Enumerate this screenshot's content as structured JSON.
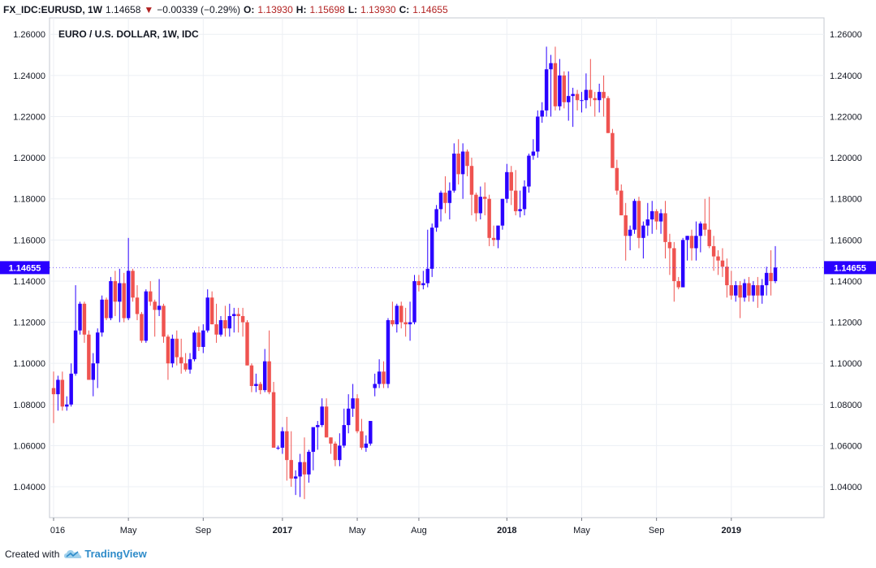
{
  "header": {
    "symbol": "FX_IDC:EURUSD, 1W",
    "last": "1.14658",
    "change": "−0.00339 (−0.29%)",
    "o_label": "O:",
    "o": "1.13930",
    "h_label": "H:",
    "h": "1.15698",
    "l_label": "L:",
    "l": "1.13930",
    "c_label": "C:",
    "c": "1.14655"
  },
  "footer": {
    "created_with": "Created with",
    "brand": "TradingView"
  },
  "colors": {
    "up": "#2a00ff",
    "down": "#ef5350",
    "grid": "#eceff4",
    "price_tag": "#2a00ff"
  },
  "chart_data": {
    "type": "candlestick",
    "title": "EURO / U.S. DOLLAR, 1W, IDC",
    "ylim": [
      1.025,
      1.268
    ],
    "y_ticks": [
      "1.04000",
      "1.06000",
      "1.08000",
      "1.10000",
      "1.12000",
      "1.14000",
      "1.16000",
      "1.18000",
      "1.20000",
      "1.22000",
      "1.24000",
      "1.26000"
    ],
    "x_ticks": [
      "016",
      "May",
      "Sep",
      "2017",
      "May",
      "Aug",
      "2018",
      "May",
      "Sep",
      "2019"
    ],
    "x_ticks_bold": [
      false,
      false,
      false,
      true,
      false,
      false,
      true,
      false,
      false,
      true
    ],
    "last_price": "1.14655",
    "grid": true,
    "candles": [
      {
        "o": 1.088,
        "h": 1.096,
        "l": 1.071,
        "c": 1.085
      },
      {
        "o": 1.085,
        "h": 1.094,
        "l": 1.077,
        "c": 1.092
      },
      {
        "o": 1.092,
        "h": 1.096,
        "l": 1.077,
        "c": 1.079
      },
      {
        "o": 1.079,
        "h": 1.084,
        "l": 1.077,
        "c": 1.08
      },
      {
        "o": 1.08,
        "h": 1.1,
        "l": 1.079,
        "c": 1.095
      },
      {
        "o": 1.095,
        "h": 1.138,
        "l": 1.094,
        "c": 1.116
      },
      {
        "o": 1.116,
        "h": 1.13,
        "l": 1.114,
        "c": 1.129
      },
      {
        "o": 1.129,
        "h": 1.13,
        "l": 1.11,
        "c": 1.114
      },
      {
        "o": 1.114,
        "h": 1.116,
        "l": 1.092,
        "c": 1.092
      },
      {
        "o": 1.092,
        "h": 1.105,
        "l": 1.084,
        "c": 1.1
      },
      {
        "o": 1.1,
        "h": 1.117,
        "l": 1.088,
        "c": 1.115
      },
      {
        "o": 1.115,
        "h": 1.133,
        "l": 1.113,
        "c": 1.131
      },
      {
        "o": 1.131,
        "h": 1.132,
        "l": 1.121,
        "c": 1.122
      },
      {
        "o": 1.122,
        "h": 1.142,
        "l": 1.121,
        "c": 1.14
      },
      {
        "o": 1.14,
        "h": 1.145,
        "l": 1.123,
        "c": 1.13
      },
      {
        "o": 1.13,
        "h": 1.146,
        "l": 1.12,
        "c": 1.139
      },
      {
        "o": 1.139,
        "h": 1.144,
        "l": 1.12,
        "c": 1.122
      },
      {
        "o": 1.122,
        "h": 1.161,
        "l": 1.121,
        "c": 1.145
      },
      {
        "o": 1.145,
        "h": 1.146,
        "l": 1.13,
        "c": 1.132
      },
      {
        "o": 1.132,
        "h": 1.138,
        "l": 1.121,
        "c": 1.124
      },
      {
        "o": 1.124,
        "h": 1.125,
        "l": 1.11,
        "c": 1.111
      },
      {
        "o": 1.111,
        "h": 1.136,
        "l": 1.11,
        "c": 1.135
      },
      {
        "o": 1.135,
        "h": 1.14,
        "l": 1.128,
        "c": 1.13
      },
      {
        "o": 1.13,
        "h": 1.131,
        "l": 1.113,
        "c": 1.126
      },
      {
        "o": 1.126,
        "h": 1.141,
        "l": 1.123,
        "c": 1.128
      },
      {
        "o": 1.128,
        "h": 1.129,
        "l": 1.11,
        "c": 1.113
      },
      {
        "o": 1.113,
        "h": 1.114,
        "l": 1.092,
        "c": 1.1
      },
      {
        "o": 1.1,
        "h": 1.114,
        "l": 1.098,
        "c": 1.112
      },
      {
        "o": 1.112,
        "h": 1.116,
        "l": 1.099,
        "c": 1.103
      },
      {
        "o": 1.103,
        "h": 1.112,
        "l": 1.095,
        "c": 1.1
      },
      {
        "o": 1.1,
        "h": 1.105,
        "l": 1.096,
        "c": 1.097
      },
      {
        "o": 1.097,
        "h": 1.105,
        "l": 1.095,
        "c": 1.102
      },
      {
        "o": 1.102,
        "h": 1.116,
        "l": 1.101,
        "c": 1.115
      },
      {
        "o": 1.115,
        "h": 1.118,
        "l": 1.106,
        "c": 1.108
      },
      {
        "o": 1.108,
        "h": 1.119,
        "l": 1.105,
        "c": 1.116
      },
      {
        "o": 1.116,
        "h": 1.136,
        "l": 1.115,
        "c": 1.132
      },
      {
        "o": 1.132,
        "h": 1.135,
        "l": 1.119,
        "c": 1.119
      },
      {
        "o": 1.119,
        "h": 1.129,
        "l": 1.11,
        "c": 1.114
      },
      {
        "o": 1.114,
        "h": 1.123,
        "l": 1.113,
        "c": 1.121
      },
      {
        "o": 1.121,
        "h": 1.128,
        "l": 1.113,
        "c": 1.117
      },
      {
        "o": 1.117,
        "h": 1.129,
        "l": 1.113,
        "c": 1.123
      },
      {
        "o": 1.123,
        "h": 1.127,
        "l": 1.115,
        "c": 1.124
      },
      {
        "o": 1.124,
        "h": 1.127,
        "l": 1.115,
        "c": 1.123
      },
      {
        "o": 1.123,
        "h": 1.127,
        "l": 1.113,
        "c": 1.12
      },
      {
        "o": 1.12,
        "h": 1.121,
        "l": 1.099,
        "c": 1.099
      },
      {
        "o": 1.099,
        "h": 1.1,
        "l": 1.086,
        "c": 1.089
      },
      {
        "o": 1.089,
        "h": 1.095,
        "l": 1.086,
        "c": 1.09
      },
      {
        "o": 1.09,
        "h": 1.091,
        "l": 1.085,
        "c": 1.087
      },
      {
        "o": 1.087,
        "h": 1.107,
        "l": 1.086,
        "c": 1.101
      },
      {
        "o": 1.101,
        "h": 1.116,
        "l": 1.085,
        "c": 1.086
      },
      {
        "o": 1.086,
        "h": 1.091,
        "l": 1.059,
        "c": 1.059
      },
      {
        "o": 1.059,
        "h": 1.06,
        "l": 1.058,
        "c": 1.059
      },
      {
        "o": 1.059,
        "h": 1.069,
        "l": 1.056,
        "c": 1.067
      },
      {
        "o": 1.067,
        "h": 1.074,
        "l": 1.043,
        "c": 1.053
      },
      {
        "o": 1.053,
        "h": 1.067,
        "l": 1.04,
        "c": 1.044
      },
      {
        "o": 1.044,
        "h": 1.048,
        "l": 1.036,
        "c": 1.045
      },
      {
        "o": 1.045,
        "h": 1.056,
        "l": 1.035,
        "c": 1.052
      },
      {
        "o": 1.052,
        "h": 1.064,
        "l": 1.034,
        "c": 1.046
      },
      {
        "o": 1.046,
        "h": 1.058,
        "l": 1.042,
        "c": 1.057
      },
      {
        "o": 1.057,
        "h": 1.068,
        "l": 1.048,
        "c": 1.069
      },
      {
        "o": 1.069,
        "h": 1.072,
        "l": 1.058,
        "c": 1.07
      },
      {
        "o": 1.07,
        "h": 1.083,
        "l": 1.069,
        "c": 1.079
      },
      {
        "o": 1.079,
        "h": 1.083,
        "l": 1.064,
        "c": 1.064
      },
      {
        "o": 1.064,
        "h": 1.064,
        "l": 1.056,
        "c": 1.061
      },
      {
        "o": 1.061,
        "h": 1.062,
        "l": 1.05,
        "c": 1.053
      },
      {
        "o": 1.053,
        "h": 1.066,
        "l": 1.05,
        "c": 1.06
      },
      {
        "o": 1.06,
        "h": 1.078,
        "l": 1.059,
        "c": 1.07
      },
      {
        "o": 1.07,
        "h": 1.085,
        "l": 1.066,
        "c": 1.078
      },
      {
        "o": 1.078,
        "h": 1.09,
        "l": 1.074,
        "c": 1.083
      },
      {
        "o": 1.083,
        "h": 1.085,
        "l": 1.066,
        "c": 1.067
      },
      {
        "o": 1.067,
        "h": 1.073,
        "l": 1.058,
        "c": 1.059
      },
      {
        "o": 1.059,
        "h": 1.065,
        "l": 1.057,
        "c": 1.061
      },
      {
        "o": 1.061,
        "h": 1.072,
        "l": 1.06,
        "c": 1.072
      },
      {
        "o": 1.088,
        "h": 1.095,
        "l": 1.084,
        "c": 1.09
      },
      {
        "o": 1.09,
        "h": 1.102,
        "l": 1.088,
        "c": 1.096
      },
      {
        "o": 1.096,
        "h": 1.101,
        "l": 1.088,
        "c": 1.09
      },
      {
        "o": 1.09,
        "h": 1.122,
        "l": 1.088,
        "c": 1.121
      },
      {
        "o": 1.121,
        "h": 1.13,
        "l": 1.118,
        "c": 1.119
      },
      {
        "o": 1.119,
        "h": 1.129,
        "l": 1.115,
        "c": 1.128
      },
      {
        "o": 1.128,
        "h": 1.13,
        "l": 1.117,
        "c": 1.12
      },
      {
        "o": 1.12,
        "h": 1.127,
        "l": 1.113,
        "c": 1.119
      },
      {
        "o": 1.119,
        "h": 1.13,
        "l": 1.111,
        "c": 1.12
      },
      {
        "o": 1.12,
        "h": 1.143,
        "l": 1.119,
        "c": 1.14
      },
      {
        "o": 1.14,
        "h": 1.143,
        "l": 1.135,
        "c": 1.138
      },
      {
        "o": 1.138,
        "h": 1.145,
        "l": 1.136,
        "c": 1.139
      },
      {
        "o": 1.139,
        "h": 1.165,
        "l": 1.137,
        "c": 1.146
      },
      {
        "o": 1.146,
        "h": 1.168,
        "l": 1.142,
        "c": 1.166
      },
      {
        "o": 1.166,
        "h": 1.177,
        "l": 1.164,
        "c": 1.175
      },
      {
        "o": 1.175,
        "h": 1.184,
        "l": 1.169,
        "c": 1.183
      },
      {
        "o": 1.183,
        "h": 1.191,
        "l": 1.173,
        "c": 1.178
      },
      {
        "o": 1.178,
        "h": 1.188,
        "l": 1.17,
        "c": 1.184
      },
      {
        "o": 1.184,
        "h": 1.207,
        "l": 1.183,
        "c": 1.202
      },
      {
        "o": 1.202,
        "h": 1.209,
        "l": 1.187,
        "c": 1.192
      },
      {
        "o": 1.192,
        "h": 1.207,
        "l": 1.18,
        "c": 1.203
      },
      {
        "o": 1.203,
        "h": 1.204,
        "l": 1.191,
        "c": 1.196
      },
      {
        "o": 1.196,
        "h": 1.2,
        "l": 1.172,
        "c": 1.182
      },
      {
        "o": 1.182,
        "h": 1.183,
        "l": 1.169,
        "c": 1.173
      },
      {
        "o": 1.173,
        "h": 1.186,
        "l": 1.17,
        "c": 1.181
      },
      {
        "o": 1.181,
        "h": 1.188,
        "l": 1.172,
        "c": 1.18
      },
      {
        "o": 1.18,
        "h": 1.182,
        "l": 1.157,
        "c": 1.161
      },
      {
        "o": 1.161,
        "h": 1.167,
        "l": 1.157,
        "c": 1.16
      },
      {
        "o": 1.16,
        "h": 1.167,
        "l": 1.156,
        "c": 1.167
      },
      {
        "o": 1.167,
        "h": 1.18,
        "l": 1.165,
        "c": 1.18
      },
      {
        "o": 1.18,
        "h": 1.197,
        "l": 1.178,
        "c": 1.193
      },
      {
        "o": 1.193,
        "h": 1.196,
        "l": 1.177,
        "c": 1.184
      },
      {
        "o": 1.184,
        "h": 1.194,
        "l": 1.172,
        "c": 1.174
      },
      {
        "o": 1.174,
        "h": 1.184,
        "l": 1.171,
        "c": 1.175
      },
      {
        "o": 1.175,
        "h": 1.189,
        "l": 1.172,
        "c": 1.186
      },
      {
        "o": 1.186,
        "h": 1.202,
        "l": 1.183,
        "c": 1.201
      },
      {
        "o": 1.201,
        "h": 1.209,
        "l": 1.199,
        "c": 1.203
      },
      {
        "o": 1.203,
        "h": 1.223,
        "l": 1.2,
        "c": 1.22
      },
      {
        "o": 1.22,
        "h": 1.227,
        "l": 1.217,
        "c": 1.223
      },
      {
        "o": 1.223,
        "h": 1.254,
        "l": 1.22,
        "c": 1.243
      },
      {
        "o": 1.243,
        "h": 1.25,
        "l": 1.22,
        "c": 1.246
      },
      {
        "o": 1.246,
        "h": 1.254,
        "l": 1.223,
        "c": 1.225
      },
      {
        "o": 1.225,
        "h": 1.248,
        "l": 1.223,
        "c": 1.24
      },
      {
        "o": 1.24,
        "h": 1.242,
        "l": 1.224,
        "c": 1.227
      },
      {
        "o": 1.227,
        "h": 1.242,
        "l": 1.218,
        "c": 1.23
      },
      {
        "o": 1.23,
        "h": 1.234,
        "l": 1.215,
        "c": 1.231
      },
      {
        "o": 1.231,
        "h": 1.233,
        "l": 1.223,
        "c": 1.228
      },
      {
        "o": 1.228,
        "h": 1.232,
        "l": 1.222,
        "c": 1.228
      },
      {
        "o": 1.228,
        "h": 1.241,
        "l": 1.224,
        "c": 1.233
      },
      {
        "o": 1.233,
        "h": 1.248,
        "l": 1.225,
        "c": 1.229
      },
      {
        "o": 1.229,
        "h": 1.232,
        "l": 1.22,
        "c": 1.228
      },
      {
        "o": 1.228,
        "h": 1.236,
        "l": 1.222,
        "c": 1.232
      },
      {
        "o": 1.232,
        "h": 1.24,
        "l": 1.22,
        "c": 1.229
      },
      {
        "o": 1.229,
        "h": 1.23,
        "l": 1.212,
        "c": 1.212
      },
      {
        "o": 1.212,
        "h": 1.214,
        "l": 1.196,
        "c": 1.195
      },
      {
        "o": 1.195,
        "h": 1.199,
        "l": 1.182,
        "c": 1.184
      },
      {
        "o": 1.184,
        "h": 1.187,
        "l": 1.172,
        "c": 1.172
      },
      {
        "o": 1.172,
        "h": 1.178,
        "l": 1.15,
        "c": 1.162
      },
      {
        "o": 1.162,
        "h": 1.167,
        "l": 1.155,
        "c": 1.165
      },
      {
        "o": 1.165,
        "h": 1.18,
        "l": 1.163,
        "c": 1.179
      },
      {
        "o": 1.179,
        "h": 1.181,
        "l": 1.156,
        "c": 1.161
      },
      {
        "o": 1.161,
        "h": 1.169,
        "l": 1.151,
        "c": 1.167
      },
      {
        "o": 1.167,
        "h": 1.178,
        "l": 1.162,
        "c": 1.17
      },
      {
        "o": 1.17,
        "h": 1.179,
        "l": 1.163,
        "c": 1.174
      },
      {
        "o": 1.174,
        "h": 1.175,
        "l": 1.165,
        "c": 1.169
      },
      {
        "o": 1.169,
        "h": 1.175,
        "l": 1.163,
        "c": 1.173
      },
      {
        "o": 1.173,
        "h": 1.179,
        "l": 1.151,
        "c": 1.159
      },
      {
        "o": 1.159,
        "h": 1.163,
        "l": 1.143,
        "c": 1.156
      },
      {
        "o": 1.156,
        "h": 1.159,
        "l": 1.13,
        "c": 1.14
      },
      {
        "o": 1.14,
        "h": 1.142,
        "l": 1.136,
        "c": 1.137
      },
      {
        "o": 1.137,
        "h": 1.161,
        "l": 1.137,
        "c": 1.16
      },
      {
        "o": 1.16,
        "h": 1.162,
        "l": 1.15,
        "c": 1.162
      },
      {
        "o": 1.162,
        "h": 1.165,
        "l": 1.15,
        "c": 1.156
      },
      {
        "o": 1.156,
        "h": 1.169,
        "l": 1.15,
        "c": 1.162
      },
      {
        "o": 1.162,
        "h": 1.169,
        "l": 1.154,
        "c": 1.168
      },
      {
        "o": 1.168,
        "h": 1.18,
        "l": 1.162,
        "c": 1.165
      },
      {
        "o": 1.165,
        "h": 1.181,
        "l": 1.156,
        "c": 1.157
      },
      {
        "o": 1.157,
        "h": 1.162,
        "l": 1.145,
        "c": 1.152
      },
      {
        "o": 1.152,
        "h": 1.155,
        "l": 1.143,
        "c": 1.15
      },
      {
        "o": 1.15,
        "h": 1.156,
        "l": 1.142,
        "c": 1.147
      },
      {
        "o": 1.147,
        "h": 1.151,
        "l": 1.132,
        "c": 1.138
      },
      {
        "o": 1.138,
        "h": 1.145,
        "l": 1.131,
        "c": 1.133
      },
      {
        "o": 1.133,
        "h": 1.14,
        "l": 1.13,
        "c": 1.138
      },
      {
        "o": 1.138,
        "h": 1.14,
        "l": 1.122,
        "c": 1.132
      },
      {
        "o": 1.132,
        "h": 1.141,
        "l": 1.13,
        "c": 1.139
      },
      {
        "o": 1.139,
        "h": 1.142,
        "l": 1.13,
        "c": 1.133
      },
      {
        "o": 1.133,
        "h": 1.14,
        "l": 1.13,
        "c": 1.138
      },
      {
        "o": 1.138,
        "h": 1.142,
        "l": 1.127,
        "c": 1.133
      },
      {
        "o": 1.133,
        "h": 1.141,
        "l": 1.129,
        "c": 1.138
      },
      {
        "o": 1.138,
        "h": 1.147,
        "l": 1.133,
        "c": 1.144
      },
      {
        "o": 1.144,
        "h": 1.155,
        "l": 1.133,
        "c": 1.14
      },
      {
        "o": 1.14,
        "h": 1.157,
        "l": 1.139,
        "c": 1.1466
      }
    ]
  }
}
